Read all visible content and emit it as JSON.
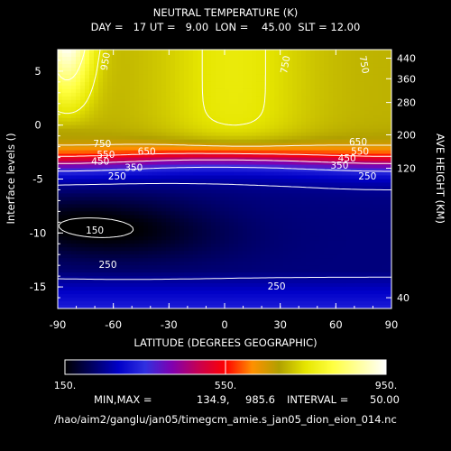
{
  "chart_data": {
    "type": "heatmap",
    "title": "NEUTRAL TEMPERATURE (K)",
    "subtitle": "DAY =   17 UT =   9.00  LON =    45.00  SLT = 12.00",
    "xlabel": "LATITUDE (DEGREES GEOGRAPHIC)",
    "ylabel": "Interface levels ()",
    "y2label": "AVE HEIGHT (KM)",
    "xlim": [
      -90,
      90
    ],
    "ylim": [
      -17,
      7
    ],
    "x_ticks": [
      "-90",
      "-60",
      "-30",
      "0",
      "30",
      "60",
      "90"
    ],
    "y_ticks": [
      "-15",
      "-10",
      "-5",
      "0",
      "5"
    ],
    "height_ticks": [
      {
        "level": 6.2,
        "label": "440"
      },
      {
        "level": 4.3,
        "label": "360"
      },
      {
        "level": 2.1,
        "label": "280"
      },
      {
        "level": -0.9,
        "label": "200"
      },
      {
        "level": -4.0,
        "label": "120"
      },
      {
        "level": -16.0,
        "label": "40"
      }
    ],
    "contour_labels": [
      {
        "lat": -64,
        "level": 5.9,
        "text": "950",
        "rotate": -80
      },
      {
        "lat": 33,
        "level": 5.6,
        "text": "750",
        "rotate": -80
      },
      {
        "lat": 75,
        "level": 5.6,
        "text": "750",
        "rotate": 80
      },
      {
        "lat": -66,
        "level": -1.8,
        "text": "750"
      },
      {
        "lat": -42,
        "level": -2.5,
        "text": "650"
      },
      {
        "lat": -64,
        "level": -2.8,
        "text": "550"
      },
      {
        "lat": -67,
        "level": -3.4,
        "text": "450"
      },
      {
        "lat": -49,
        "level": -4.0,
        "text": "350"
      },
      {
        "lat": -58,
        "level": -4.8,
        "text": "250"
      },
      {
        "lat": 72,
        "level": -1.6,
        "text": "650"
      },
      {
        "lat": 73,
        "level": -2.5,
        "text": "550"
      },
      {
        "lat": 66,
        "level": -3.1,
        "text": "450"
      },
      {
        "lat": 62,
        "level": -3.8,
        "text": "350"
      },
      {
        "lat": 77,
        "level": -4.8,
        "text": "250"
      },
      {
        "lat": -70,
        "level": -9.8,
        "text": "150"
      },
      {
        "lat": -63,
        "level": -13.0,
        "text": "250"
      },
      {
        "lat": 28,
        "level": -15.0,
        "text": "250"
      }
    ],
    "colorbar": {
      "min_label": "150.",
      "mid_label": "550.",
      "max_label": "950.",
      "colors": [
        "#000000",
        "#000060",
        "#0000c8",
        "#3030e0",
        "#8000b0",
        "#c80050",
        "#ff0000",
        "#ff9000",
        "#b0a000",
        "#e6e600",
        "#ffff40",
        "#ffffa0",
        "#ffffff"
      ]
    },
    "min_max_label": "MIN,MAX =",
    "min": "134.9,",
    "max": "985.6",
    "interval_label": "INTERVAL =",
    "interval": "50.00",
    "file_path": "/hao/aim2/ganglu/jan05/timegcm_amie.s_jan05_dion_eion_014.nc"
  }
}
